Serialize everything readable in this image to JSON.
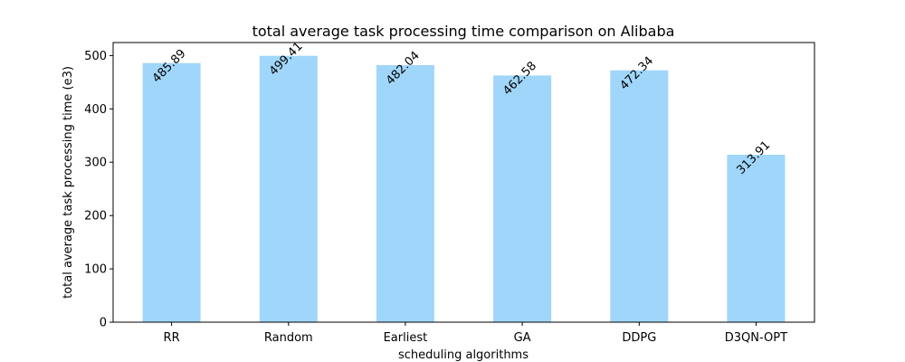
{
  "chart_data": {
    "type": "bar",
    "title": "total average task processing time comparison on Alibaba",
    "xlabel": "scheduling algorithms",
    "ylabel": "total average task processing time (e3)",
    "categories": [
      "RR",
      "Random",
      "Earliest",
      "GA",
      "DDPG",
      "D3QN-OPT"
    ],
    "values": [
      485.89,
      499.41,
      482.04,
      462.58,
      472.34,
      313.91
    ],
    "data_labels": [
      "485.89",
      "499.41",
      "482.04",
      "462.58",
      "472.34",
      "313.91"
    ],
    "ylim": [
      0,
      524.4
    ],
    "yticks": [
      0,
      100,
      200,
      300,
      400,
      500
    ],
    "ytick_labels": [
      "0",
      "100",
      "200",
      "300",
      "400",
      "500"
    ],
    "bar_color": "#a0d6f9",
    "grid": false,
    "legend": "none"
  }
}
